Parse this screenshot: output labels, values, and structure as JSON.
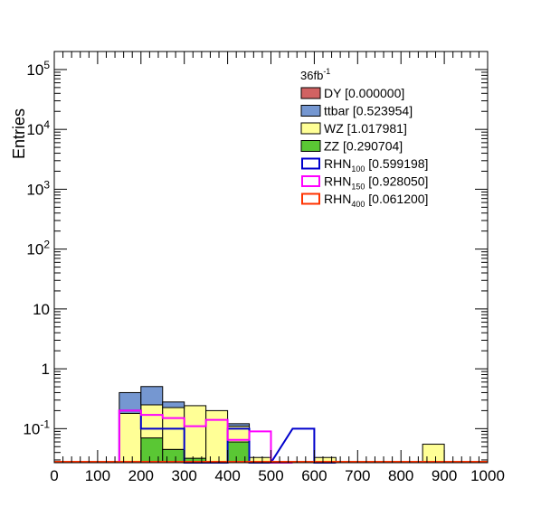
{
  "chart_data": {
    "type": "bar",
    "title": "",
    "xlabel": "",
    "ylabel": "Entries",
    "annotation": {
      "text": "36fb",
      "sup": "-1"
    },
    "xlim": [
      0,
      1000
    ],
    "ylim": [
      0.027,
      200000
    ],
    "yscale": "log",
    "bin_width": 50,
    "x_ticks": [
      "0",
      "100",
      "200",
      "300",
      "400",
      "500",
      "600",
      "700",
      "800",
      "900",
      "1000"
    ],
    "x_tick_values": [
      0,
      100,
      200,
      300,
      400,
      500,
      600,
      700,
      800,
      900,
      1000
    ],
    "y_ticks": [
      {
        "value": 0.1,
        "base": "10",
        "sup": "-1"
      },
      {
        "value": 1,
        "base": "1",
        "sup": ""
      },
      {
        "value": 10,
        "base": "10",
        "sup": ""
      },
      {
        "value": 100,
        "base": "10",
        "sup": "2"
      },
      {
        "value": 1000,
        "base": "10",
        "sup": "3"
      },
      {
        "value": 10000,
        "base": "10",
        "sup": "4"
      },
      {
        "value": 100000,
        "base": "10",
        "sup": "5"
      }
    ],
    "stacked_series": [
      {
        "name": "ZZ",
        "color": "#5ac734",
        "bin_lows": [
          200,
          250,
          300,
          400
        ],
        "values": [
          0.07,
          0.045,
          0.032,
          0.06
        ]
      },
      {
        "name": "WZ",
        "color": "#ffff96",
        "bin_lows": [
          150,
          200,
          250,
          300,
          350,
          400,
          450,
          600,
          850
        ],
        "values": [
          0.18,
          0.18,
          0.18,
          0.21,
          0.2,
          0.05,
          0.033,
          0.033,
          0.055
        ]
      },
      {
        "name": "ttbar",
        "color": "#7597d1",
        "bin_lows": [
          150,
          200,
          250,
          400
        ],
        "values": [
          0.22,
          0.255,
          0.054,
          0.011
        ]
      },
      {
        "name": "DY",
        "color": "#d16262",
        "bin_lows": [],
        "values": []
      }
    ],
    "line_series": [
      {
        "name": "RHN",
        "sub": "100",
        "color": "#0000cc",
        "bin_lows": [
          150,
          200,
          250,
          300,
          350,
          400,
          450,
          550,
          600
        ],
        "values": [
          0.2,
          0.1,
          0.1,
          0.027,
          0.027,
          0.1,
          0.027,
          0.1,
          0.027
        ]
      },
      {
        "name": "RHN",
        "sub": "150",
        "color": "#ff00ff",
        "bin_lows": [
          150,
          200,
          250,
          300,
          350,
          400,
          450,
          500
        ],
        "values": [
          0.2,
          0.17,
          0.15,
          0.11,
          0.14,
          0.065,
          0.09,
          0.027
        ]
      },
      {
        "name": "RHN",
        "sub": "400",
        "color": "#ff3300",
        "bin_lows": [],
        "values": []
      }
    ],
    "legend": [
      {
        "style": "fill",
        "color": "#d16262",
        "name": "DY",
        "sub": "",
        "value": "[0.000000]"
      },
      {
        "style": "fill",
        "color": "#7597d1",
        "name": "ttbar",
        "sub": "",
        "value": "[0.523954]"
      },
      {
        "style": "fill",
        "color": "#ffff96",
        "name": "WZ",
        "sub": "",
        "value": "[1.017981]"
      },
      {
        "style": "fill",
        "color": "#5ac734",
        "name": "ZZ",
        "sub": "",
        "value": "[0.290704]"
      },
      {
        "style": "line",
        "color": "#0000cc",
        "name": "RHN",
        "sub": "100",
        "value": "[0.599198]"
      },
      {
        "style": "line",
        "color": "#ff00ff",
        "name": "RHN",
        "sub": "150",
        "value": "[0.928050]"
      },
      {
        "style": "line",
        "color": "#ff3300",
        "name": "RHN",
        "sub": "400",
        "value": "[0.061200]"
      }
    ],
    "legend_position": "top-right",
    "grid": false
  }
}
